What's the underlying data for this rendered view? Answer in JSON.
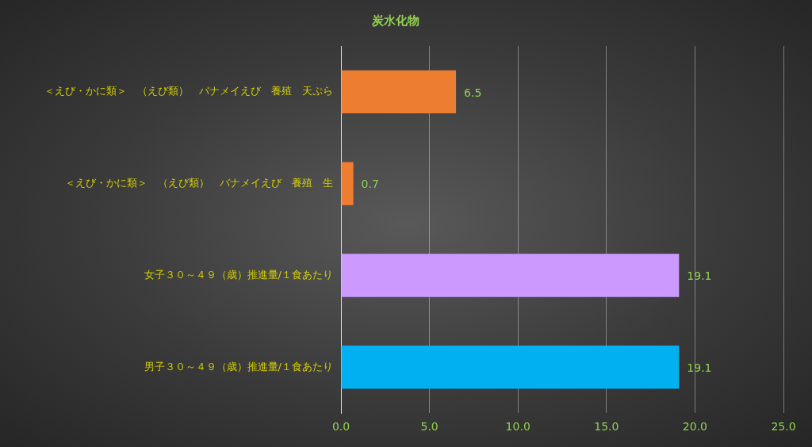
{
  "chart_data": {
    "type": "bar",
    "orientation": "horizontal",
    "title": "炭水化物",
    "categories": [
      "＜えび・かに類＞　（えび類）　バナメイえび　養殖　天ぷら",
      "＜えび・かに類＞　（えび類）　バナメイえび　養殖　生",
      "女子３０～４９（歳）推進量/１食あたり",
      "男子３０～４９（歳）推進量/１食あたり"
    ],
    "values": [
      6.5,
      0.7,
      19.1,
      19.1
    ],
    "colors": [
      "#ed7d31",
      "#ed7d31",
      "#cc99ff",
      "#00b0f0"
    ],
    "xlim": [
      0,
      25
    ],
    "xticks": [
      {
        "value": 0,
        "label": "0.0"
      },
      {
        "value": 5,
        "label": "5.0"
      },
      {
        "value": 10,
        "label": "10.0"
      },
      {
        "value": 15,
        "label": "15.0"
      },
      {
        "value": 20,
        "label": "20.0"
      },
      {
        "value": 25,
        "label": "25.0"
      }
    ],
    "grid": "x",
    "legend": false,
    "data_labels": true
  }
}
